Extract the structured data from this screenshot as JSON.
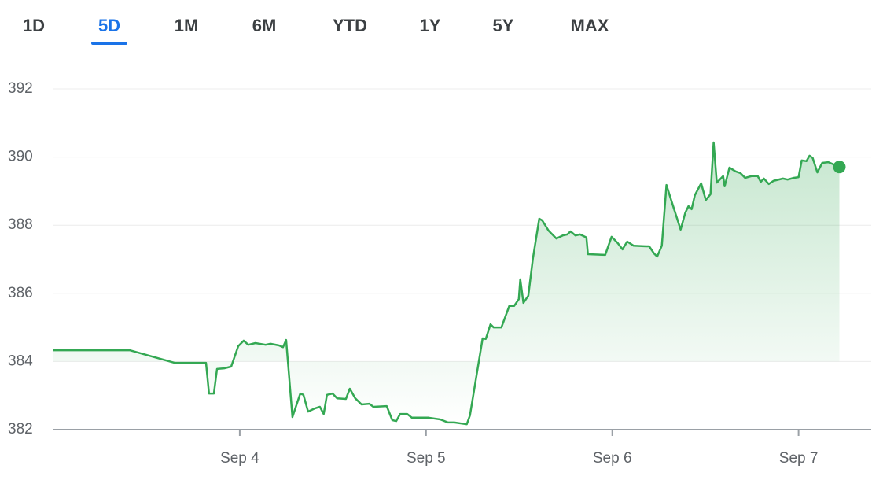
{
  "tabs": [
    "1D",
    "5D",
    "1M",
    "6M",
    "YTD",
    "1Y",
    "5Y",
    "MAX"
  ],
  "selected_tab_index": 1,
  "chart_data": {
    "type": "line",
    "color": "#34a853",
    "grid": true,
    "xlim": [
      3,
      7.39
    ],
    "ylim": [
      382,
      392
    ],
    "yticks": [
      382,
      384,
      386,
      388,
      390,
      392
    ],
    "xticks": [
      {
        "value": 4,
        "label": "Sep 4"
      },
      {
        "value": 5,
        "label": "Sep 5"
      },
      {
        "value": 6,
        "label": "Sep 6"
      },
      {
        "value": 7,
        "label": "Sep 7"
      }
    ],
    "series": [
      {
        "x": [
          3.0,
          3.409,
          3.65,
          3.819,
          3.835,
          3.861,
          3.878,
          3.916,
          3.954,
          3.992,
          4.021,
          4.046,
          4.084,
          4.139,
          4.165,
          4.211,
          4.232,
          4.249,
          4.283,
          4.325,
          4.342,
          4.367,
          4.401,
          4.43,
          4.451,
          4.468,
          4.498,
          4.523,
          4.57,
          4.591,
          4.62,
          4.654,
          4.696,
          4.717,
          4.789,
          4.819,
          4.84,
          4.861,
          4.899,
          4.924,
          5.013,
          5.076,
          5.118,
          5.152,
          5.19,
          5.219,
          5.236,
          5.304,
          5.321,
          5.346,
          5.363,
          5.405,
          5.447,
          5.473,
          5.498,
          5.506,
          5.523,
          5.549,
          5.574,
          5.608,
          5.624,
          5.658,
          5.7,
          5.734,
          5.759,
          5.776,
          5.802,
          5.827,
          5.861,
          5.869,
          5.962,
          5.996,
          6.03,
          6.055,
          6.08,
          6.114,
          6.181,
          6.198,
          6.224,
          6.241,
          6.266,
          6.291,
          6.316,
          6.367,
          6.392,
          6.409,
          6.426,
          6.443,
          6.477,
          6.502,
          6.527,
          6.544,
          6.561,
          6.595,
          6.603,
          6.629,
          6.662,
          6.688,
          6.713,
          6.747,
          6.781,
          6.797,
          6.814,
          6.84,
          6.865,
          6.916,
          6.941,
          6.975,
          7.0,
          7.017,
          7.042,
          7.059,
          7.076,
          7.101,
          7.127,
          7.16,
          7.219
        ],
        "values": [
          384.33,
          384.33,
          383.96,
          383.96,
          383.06,
          383.06,
          383.78,
          383.8,
          383.85,
          384.45,
          384.61,
          384.49,
          384.54,
          384.49,
          384.52,
          384.47,
          384.42,
          384.63,
          382.37,
          383.06,
          383.02,
          382.53,
          382.62,
          382.67,
          382.46,
          383.02,
          383.06,
          382.92,
          382.9,
          383.2,
          382.92,
          382.74,
          382.76,
          382.67,
          382.69,
          382.28,
          382.25,
          382.46,
          382.46,
          382.35,
          382.35,
          382.3,
          382.21,
          382.21,
          382.18,
          382.16,
          382.42,
          384.68,
          384.66,
          385.09,
          385.0,
          385.0,
          385.63,
          385.63,
          385.83,
          386.41,
          385.72,
          385.93,
          387.03,
          388.19,
          388.14,
          387.84,
          387.61,
          387.7,
          387.73,
          387.82,
          387.7,
          387.73,
          387.64,
          387.15,
          387.13,
          387.66,
          387.47,
          387.29,
          387.52,
          387.4,
          387.38,
          387.38,
          387.17,
          387.08,
          387.4,
          389.18,
          388.74,
          387.87,
          388.37,
          388.56,
          388.47,
          388.88,
          389.23,
          388.74,
          388.91,
          390.43,
          389.25,
          389.44,
          389.14,
          389.69,
          389.58,
          389.53,
          389.39,
          389.44,
          389.44,
          389.27,
          389.37,
          389.21,
          389.3,
          389.37,
          389.34,
          389.39,
          389.41,
          389.9,
          389.88,
          390.04,
          389.97,
          389.55,
          389.83,
          389.85,
          389.71
        ]
      }
    ]
  }
}
